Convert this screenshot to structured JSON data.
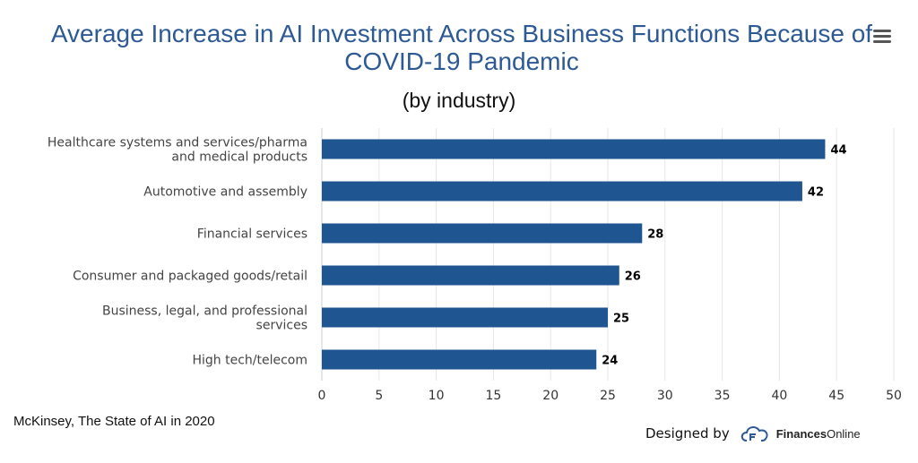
{
  "header": {
    "title": "Average Increase in AI Investment Across Business Functions Because of COVID-19 Pandemic",
    "subtitle": "(by industry)"
  },
  "footer": {
    "source": "McKinsey, The State of AI in 2020",
    "designed_by": "Designed by",
    "brand_bold": "Finances",
    "brand_rest": "Online"
  },
  "colors": {
    "bar": "#1f5590",
    "title": "#2d5a94",
    "grid": "#e6e6e6"
  },
  "menu_icon": "hamburger-menu-icon",
  "chart_data": {
    "type": "bar",
    "orientation": "horizontal",
    "title": "Average Increase in AI Investment Across Business Functions Because of COVID-19 Pandemic",
    "subtitle": "(by industry)",
    "categories": [
      "Healthcare systems and services/pharma and medical products",
      "Automotive and assembly",
      "Financial services",
      "Consumer and packaged goods/retail",
      "Business, legal, and professional services",
      "High tech/telecom"
    ],
    "category_lines": [
      [
        "Healthcare systems and services/pharma",
        "and medical products"
      ],
      [
        "Automotive and assembly"
      ],
      [
        "Financial services"
      ],
      [
        "Consumer and packaged goods/retail"
      ],
      [
        "Business, legal, and professional",
        "services"
      ],
      [
        "High tech/telecom"
      ]
    ],
    "values": [
      44,
      42,
      28,
      26,
      25,
      24
    ],
    "xlim": [
      0,
      50
    ],
    "xticks": [
      0,
      5,
      10,
      15,
      20,
      25,
      30,
      35,
      40,
      45,
      50
    ],
    "grid": true,
    "data_labels": true
  }
}
